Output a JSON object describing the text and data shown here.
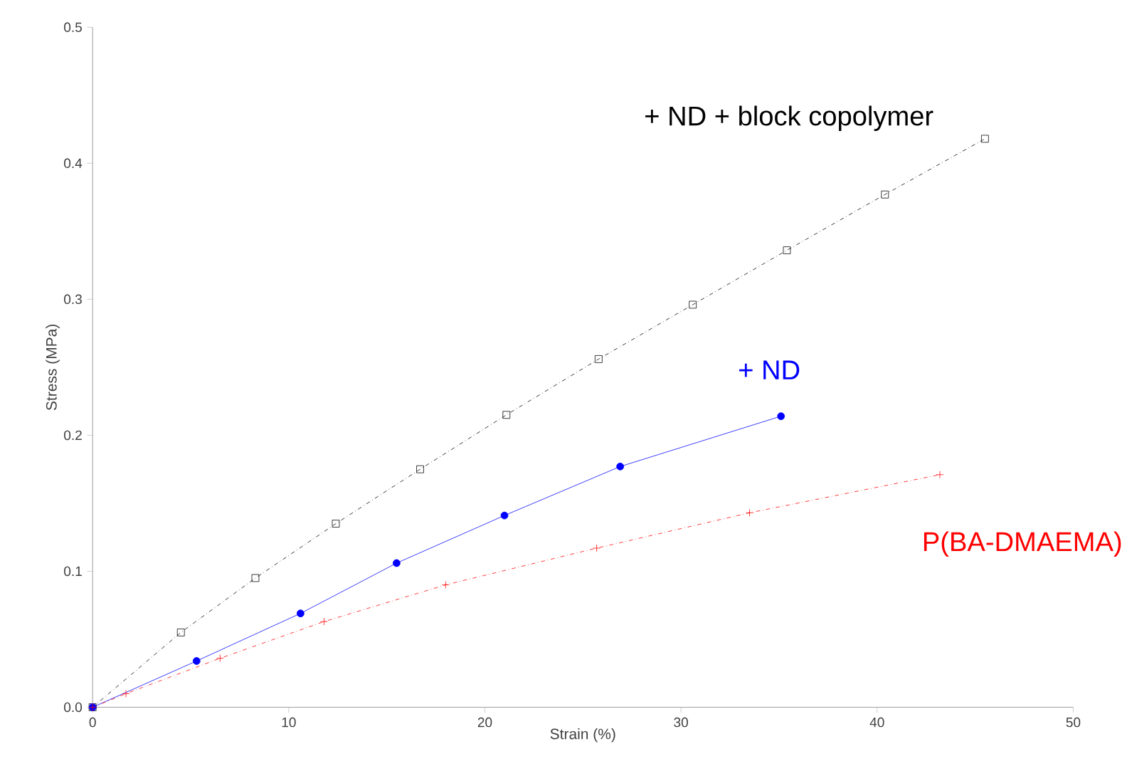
{
  "chart_data": {
    "type": "line",
    "xlabel": "Strain (%)",
    "ylabel": "Stress (MPa)",
    "xlim": [
      0,
      50
    ],
    "ylim": [
      0,
      0.5
    ],
    "xticks": [
      0,
      10,
      20,
      30,
      40,
      50
    ],
    "yticks": [
      {
        "value": 0,
        "label": "0.0"
      },
      {
        "value": 0.1,
        "label": "0.1"
      },
      {
        "value": 0.2,
        "label": "0.2"
      },
      {
        "value": 0.3,
        "label": "0.3"
      },
      {
        "value": 0.4,
        "label": "0.4"
      },
      {
        "value": 0.5,
        "label": "0.5"
      }
    ],
    "grid": false,
    "series": [
      {
        "name": "+ ND + block copolymer",
        "color": "#000000",
        "marker": "square",
        "line_style": "dashed",
        "x": [
          0,
          4.5,
          8.3,
          12.4,
          16.7,
          21.1,
          25.8,
          30.6,
          35.4,
          40.4,
          45.5
        ],
        "values": [
          0,
          0.055,
          0.095,
          0.135,
          0.175,
          0.215,
          0.256,
          0.296,
          0.336,
          0.377,
          0.418
        ]
      },
      {
        "name": "+ ND",
        "color": "#0000ff",
        "marker": "circle",
        "line_style": "solid",
        "x": [
          0,
          5.3,
          10.6,
          15.5,
          21.0,
          26.9,
          35.1
        ],
        "values": [
          0,
          0.034,
          0.069,
          0.106,
          0.141,
          0.177,
          0.214
        ]
      },
      {
        "name": "P(BA-DMAEMA)",
        "color": "#ff0000",
        "marker": "cross",
        "line_style": "dashed",
        "x": [
          0,
          1.7,
          6.5,
          11.8,
          18.0,
          25.7,
          33.5,
          43.2
        ],
        "values": [
          0,
          0.01,
          0.036,
          0.063,
          0.09,
          0.117,
          0.143,
          0.171
        ]
      }
    ]
  }
}
